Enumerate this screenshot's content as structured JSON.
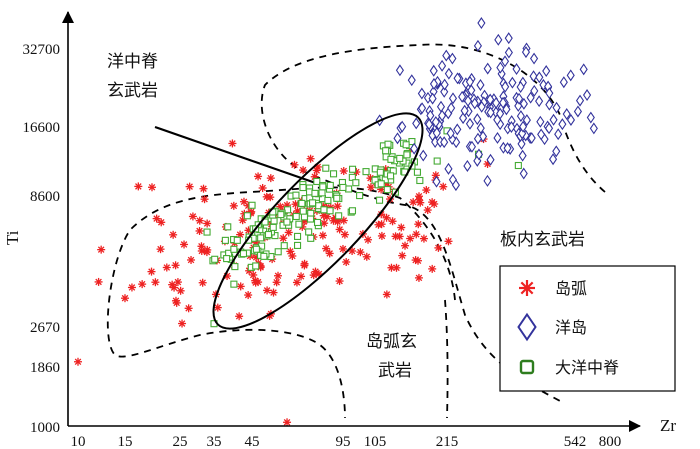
{
  "chart_data": {
    "type": "scatter",
    "x_scale": "log",
    "y_scale": "log",
    "xlabel": "Zr",
    "ylabel": "Ti",
    "x_ticks": [
      "10",
      "15",
      "25",
      "35",
      "45",
      "95",
      "105",
      "215",
      "542",
      "800"
    ],
    "y_ticks": [
      "32700",
      "16600",
      "8600",
      "2670",
      "1860",
      "1000"
    ],
    "region_labels": {
      "mid_ocean_ridge": [
        "洋中脊",
        "玄武岩"
      ],
      "within_plate": "板内玄武岩",
      "island_arc": [
        "岛弧玄",
        "武岩"
      ]
    },
    "legend": [
      {
        "name": "岛弧",
        "marker": "asterisk",
        "color": "#ee2222"
      },
      {
        "name": "洋岛",
        "marker": "diamond",
        "color": "#33339c"
      },
      {
        "name": "大洋中脊",
        "marker": "square",
        "color": "#2e7d1e"
      }
    ],
    "colors": {
      "island_arc": "#ee2222",
      "ocean_island": "#33339c",
      "mid_ocean_ridge": "#44aa33",
      "legend_ridge": "#2e7d1e"
    },
    "series": [
      {
        "name": "岛弧",
        "clusters": [
          {
            "center": [
              36,
              5200
            ],
            "spread": [
              0.19,
              0.16
            ],
            "count": 75,
            "seed": 11
          },
          {
            "center": [
              70,
              6900
            ],
            "spread": [
              0.15,
              0.12
            ],
            "count": 80,
            "seed": 13
          },
          {
            "center": [
              140,
              6500
            ],
            "spread": [
              0.12,
              0.12
            ],
            "count": 40,
            "seed": 17
          }
        ],
        "points": [
          [
            10,
            1950
          ],
          [
            60,
            1050
          ],
          [
            280,
            14800
          ],
          [
            175,
            9100
          ],
          [
            21,
            6800
          ],
          [
            16,
            3800
          ],
          [
            52,
            2950
          ]
        ]
      },
      {
        "name": "洋岛",
        "clusters": [
          {
            "center": [
              280,
              18800
            ],
            "spread": [
              0.15,
              0.11
            ],
            "count": 175,
            "seed": 23
          }
        ],
        "points": [
          [
            180,
            17000
          ],
          [
            155,
            13500
          ],
          [
            210,
            24000
          ],
          [
            480,
            15500
          ],
          [
            560,
            19000
          ],
          [
            500,
            24500
          ]
        ]
      },
      {
        "name": "大洋中脊",
        "line": {
          "x_from": 35,
          "x_to": 150,
          "y_at_from": 4900,
          "y_at_to": 12400,
          "spread_perp": 0.05,
          "count": 170,
          "seed": 31
        },
        "points": [
          [
            35,
            2750
          ],
          [
            270,
            12800
          ],
          [
            360,
            11500
          ],
          [
            195,
            12000
          ],
          [
            215,
            16000
          ]
        ]
      }
    ]
  }
}
